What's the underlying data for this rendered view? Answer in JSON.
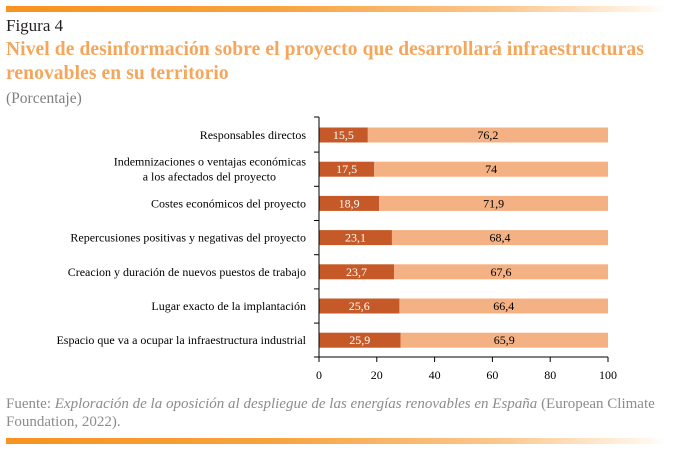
{
  "header": {
    "figure_label": "Figura 4",
    "title": "Nivel de desinformación sobre el proyecto que desarrollará infraestructuras renovables en su territorio",
    "subtitle": "(Porcentaje)"
  },
  "colors": {
    "series_dark": "#C55A28",
    "series_light": "#F4B183",
    "title": "#F5A65B",
    "rule": "#F7931E"
  },
  "chart_data": {
    "type": "bar",
    "orientation": "horizontal",
    "stacked": true,
    "normalized_to_100": true,
    "title": "Nivel de desinformación sobre el proyecto que desarrollará infraestructuras renovables en su territorio",
    "subtitle": "(Porcentaje)",
    "xlabel": "",
    "ylabel": "",
    "xlim": [
      0,
      100
    ],
    "xticks": [
      0,
      20,
      40,
      60,
      80,
      100
    ],
    "grid": false,
    "legend": "none",
    "categories": [
      [
        "Responsables directos"
      ],
      [
        "Indemnizaciones o ventajas económicas",
        "a los afectados del proyecto"
      ],
      [
        "Costes económicos del proyecto"
      ],
      [
        "Repercusiones positivas y negativas del proyecto"
      ],
      [
        "Creacion y duración de nuevos puestos de trabajo"
      ],
      [
        "Lugar exacto de la implantación"
      ],
      [
        "Espacio que va a ocupar la infraestructura industrial"
      ]
    ],
    "series": [
      {
        "name": "dark",
        "values": [
          15.5,
          17.5,
          18.9,
          23.1,
          23.7,
          25.6,
          25.9
        ],
        "labels": [
          "15,5",
          "17,5",
          "18,9",
          "23,1",
          "23,7",
          "25,6",
          "25,9"
        ]
      },
      {
        "name": "light",
        "values": [
          76.2,
          74,
          71.9,
          68.4,
          67.6,
          66.4,
          65.9
        ],
        "labels": [
          "76,2",
          "74",
          "71,9",
          "68,4",
          "67,6",
          "66,4",
          "65,9"
        ]
      }
    ]
  },
  "footer": {
    "source_prefix": "Fuente: ",
    "source_title": "Exploración de la oposición al despliegue de las energías renovables en España",
    "source_suffix": " (European Climate Foundation, 2022)."
  }
}
